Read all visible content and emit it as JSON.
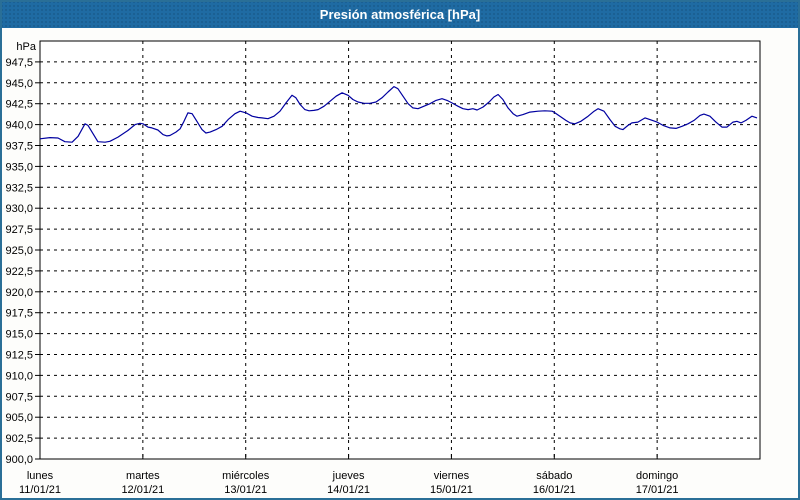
{
  "window": {
    "title": "Presión atmosférica [hPa]"
  },
  "colors": {
    "title_bar_bg": "#1f6ba3",
    "title_text": "#ffffff",
    "frame_border": "#2a6f97",
    "canvas_bg": "#fdfdfb",
    "plot_bg": "#ffffff",
    "axis": "#000000",
    "grid": "#000000",
    "line": "#0000a0",
    "label_text": "#000000"
  },
  "chart_data": {
    "type": "line",
    "title": "Presión atmosférica [hPa]",
    "ylabel": "hPa",
    "xlabel": "",
    "ylim": [
      900,
      950
    ],
    "ytick_step": 2.5,
    "ytick_labels": [
      "947,5",
      "945,0",
      "942,5",
      "940,0",
      "937,5",
      "935,0",
      "932,5",
      "930,0",
      "927,5",
      "925,0",
      "922,5",
      "920,0",
      "917,5",
      "915,0",
      "912,5",
      "910,0",
      "907,5",
      "905,0",
      "902,5",
      "900,0"
    ],
    "x_unit": "hours_from_start",
    "xlim": [
      0,
      168
    ],
    "grid": "dashed",
    "legend_position": "none",
    "days": [
      {
        "name": "lunes",
        "date": "11/01/21"
      },
      {
        "name": "martes",
        "date": "12/01/21"
      },
      {
        "name": "miércoles",
        "date": "13/01/21"
      },
      {
        "name": "jueves",
        "date": "14/01/21"
      },
      {
        "name": "viernes",
        "date": "15/01/21"
      },
      {
        "name": "sábado",
        "date": "16/01/21"
      },
      {
        "name": "domingo",
        "date": "17/01/21"
      }
    ],
    "series": [
      {
        "name": "Presión atmosférica",
        "color": "#0000a0",
        "points": [
          [
            0,
            938.3
          ],
          [
            2.3,
            938.45
          ],
          [
            4.2,
            938.4
          ],
          [
            5.8,
            937.95
          ],
          [
            7.5,
            937.9
          ],
          [
            8.9,
            938.6
          ],
          [
            10.5,
            940.1
          ],
          [
            11.2,
            939.9
          ],
          [
            12.4,
            938.9
          ],
          [
            13.5,
            937.95
          ],
          [
            15.2,
            937.9
          ],
          [
            16.3,
            938.0
          ],
          [
            18.2,
            938.5
          ],
          [
            20.5,
            939.3
          ],
          [
            22.2,
            940.0
          ],
          [
            23.3,
            940.15
          ],
          [
            24.0,
            940.1
          ],
          [
            25.2,
            939.7
          ],
          [
            26.1,
            939.6
          ],
          [
            27.5,
            939.35
          ],
          [
            28.7,
            938.8
          ],
          [
            29.6,
            938.65
          ],
          [
            30.3,
            938.7
          ],
          [
            31.7,
            939.1
          ],
          [
            32.7,
            939.5
          ],
          [
            33.6,
            940.4
          ],
          [
            34.5,
            941.4
          ],
          [
            35.5,
            941.3
          ],
          [
            36.6,
            940.4
          ],
          [
            37.8,
            939.4
          ],
          [
            38.7,
            939.0
          ],
          [
            39.7,
            939.1
          ],
          [
            41.1,
            939.4
          ],
          [
            42.5,
            939.8
          ],
          [
            43.9,
            940.6
          ],
          [
            45.5,
            941.3
          ],
          [
            46.7,
            941.6
          ],
          [
            48.1,
            941.4
          ],
          [
            49.5,
            941.0
          ],
          [
            50.9,
            940.85
          ],
          [
            51.8,
            940.8
          ],
          [
            53.2,
            940.7
          ],
          [
            54.6,
            941.0
          ],
          [
            56.0,
            941.6
          ],
          [
            57.4,
            942.6
          ],
          [
            58.8,
            943.5
          ],
          [
            59.7,
            943.2
          ],
          [
            60.7,
            942.4
          ],
          [
            61.8,
            941.8
          ],
          [
            62.8,
            941.65
          ],
          [
            63.9,
            941.7
          ],
          [
            64.9,
            941.8
          ],
          [
            66.3,
            942.2
          ],
          [
            67.7,
            942.8
          ],
          [
            69.1,
            943.4
          ],
          [
            70.5,
            943.8
          ],
          [
            71.9,
            943.5
          ],
          [
            73.0,
            943.0
          ],
          [
            74.2,
            942.7
          ],
          [
            75.6,
            942.55
          ],
          [
            77.0,
            942.55
          ],
          [
            78.4,
            942.7
          ],
          [
            79.8,
            943.2
          ],
          [
            81.2,
            943.9
          ],
          [
            82.6,
            944.55
          ],
          [
            83.5,
            944.3
          ],
          [
            84.7,
            943.4
          ],
          [
            85.9,
            942.5
          ],
          [
            87.0,
            942.0
          ],
          [
            88.2,
            941.9
          ],
          [
            89.6,
            942.2
          ],
          [
            91.0,
            942.5
          ],
          [
            92.4,
            942.9
          ],
          [
            93.8,
            943.1
          ],
          [
            95.0,
            942.9
          ],
          [
            96.1,
            942.6
          ],
          [
            97.5,
            942.2
          ],
          [
            98.7,
            941.9
          ],
          [
            99.9,
            941.8
          ],
          [
            101.0,
            941.9
          ],
          [
            102.0,
            941.75
          ],
          [
            103.4,
            942.1
          ],
          [
            104.8,
            942.7
          ],
          [
            105.9,
            943.3
          ],
          [
            106.9,
            943.6
          ],
          [
            108.0,
            943.0
          ],
          [
            109.2,
            942.0
          ],
          [
            110.4,
            941.3
          ],
          [
            111.3,
            941.0
          ],
          [
            112.7,
            941.2
          ],
          [
            114.3,
            941.5
          ],
          [
            116.2,
            941.6
          ],
          [
            117.8,
            941.65
          ],
          [
            119.5,
            941.6
          ],
          [
            119.9,
            941.5
          ],
          [
            121.3,
            941.0
          ],
          [
            122.7,
            940.5
          ],
          [
            123.7,
            940.2
          ],
          [
            124.8,
            940.1
          ],
          [
            126.2,
            940.4
          ],
          [
            127.9,
            941.0
          ],
          [
            129.3,
            941.6
          ],
          [
            130.2,
            941.9
          ],
          [
            131.6,
            941.6
          ],
          [
            133.0,
            940.6
          ],
          [
            134.2,
            939.8
          ],
          [
            135.3,
            939.5
          ],
          [
            136.0,
            939.4
          ],
          [
            137.2,
            939.9
          ],
          [
            138.1,
            940.2
          ],
          [
            139.5,
            940.3
          ],
          [
            141.2,
            940.8
          ],
          [
            142.3,
            940.6
          ],
          [
            144.0,
            940.3
          ],
          [
            145.4,
            939.9
          ],
          [
            147.0,
            939.6
          ],
          [
            148.4,
            939.55
          ],
          [
            149.8,
            939.8
          ],
          [
            151.2,
            940.1
          ],
          [
            152.6,
            940.5
          ],
          [
            154.0,
            941.1
          ],
          [
            154.9,
            941.25
          ],
          [
            156.3,
            941.0
          ],
          [
            157.7,
            940.3
          ],
          [
            159.1,
            939.7
          ],
          [
            160.3,
            939.7
          ],
          [
            161.7,
            940.3
          ],
          [
            162.6,
            940.4
          ],
          [
            163.6,
            940.2
          ],
          [
            164.7,
            940.5
          ],
          [
            166.1,
            941.0
          ],
          [
            167.3,
            940.8
          ]
        ]
      }
    ]
  }
}
